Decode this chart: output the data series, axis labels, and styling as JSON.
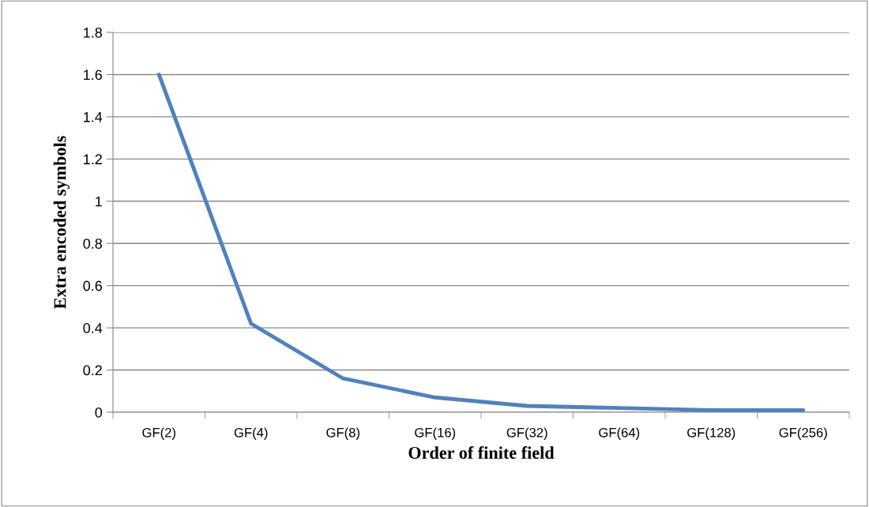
{
  "chart_data": {
    "type": "line",
    "xlabel": "Order of finite field",
    "ylabel": "Extra encoded symbols",
    "categories": [
      "GF(2)",
      "GF(4)",
      "GF(8)",
      "GF(16)",
      "GF(32)",
      "GF(64)",
      "GF(128)",
      "GF(256)"
    ],
    "series": [
      {
        "color": "#4f81bd",
        "values": [
          1.6,
          0.42,
          0.16,
          0.07,
          0.03,
          0.02,
          0.01,
          0.01
        ]
      }
    ],
    "ylim": [
      0,
      1.8
    ],
    "yticks": [
      0,
      0.2,
      0.4,
      0.6,
      0.8,
      1,
      1.2,
      1.4,
      1.6,
      1.8
    ],
    "grid": "y",
    "legend": false,
    "marker": "none",
    "line_style": "solid"
  }
}
